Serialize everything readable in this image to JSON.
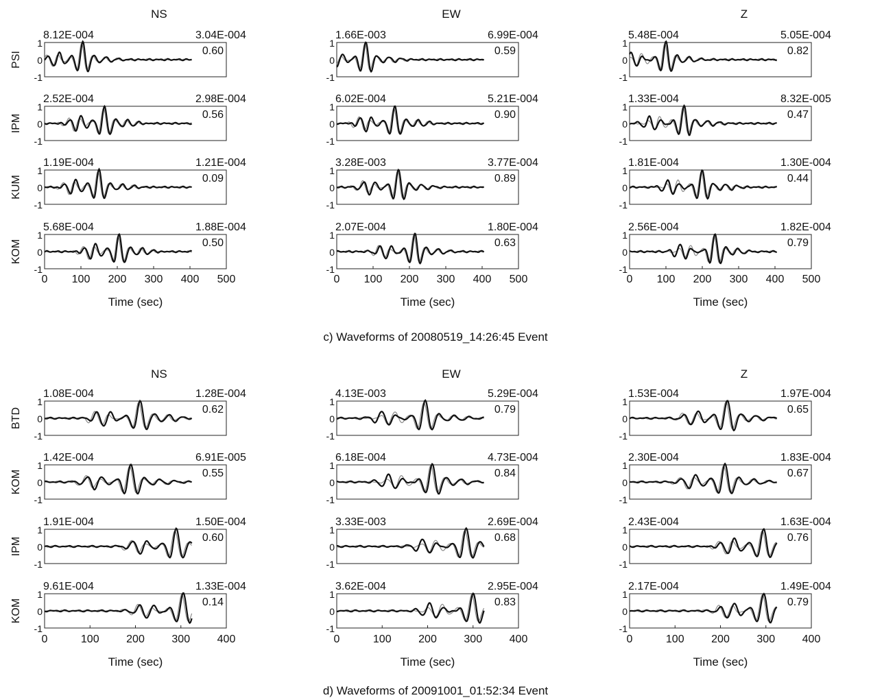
{
  "figure": {
    "panels": [
      {
        "caption": "c) Waveforms of 20080519_14:26:45 Event",
        "components": [
          "NS",
          "EW",
          "Z"
        ],
        "stations": [
          "PSI",
          "IPM",
          "KUM",
          "KOM"
        ],
        "xlabel": "Time (sec)",
        "xlim": [
          0,
          500
        ],
        "xticks": [
          "0",
          "100",
          "200",
          "300",
          "400",
          "500"
        ],
        "ylim": [
          -1,
          1
        ],
        "yticks": [
          "1",
          "0",
          "-1"
        ]
      },
      {
        "caption": "d) Waveforms of 20091001_01:52:34 Event",
        "components": [
          "NS",
          "EW",
          "Z"
        ],
        "stations": [
          "BTD",
          "KOM",
          "IPM",
          "KOM"
        ],
        "xlabel": "Time (sec)",
        "xlim": [
          0,
          400
        ],
        "xticks": [
          "0",
          "100",
          "200",
          "300",
          "400"
        ],
        "ylim": [
          -1,
          1
        ],
        "yticks": [
          "1",
          "0",
          "-1"
        ]
      }
    ]
  },
  "chart_data": [
    {
      "type": "line",
      "title": "c) Waveforms of 20080519_14:26:45 Event",
      "xlabel": "Time (sec)",
      "xlim": [
        0,
        500
      ],
      "ylim": [
        -1,
        1
      ],
      "trace_duration_sec": 405,
      "series": [
        "observed",
        "synthetic"
      ],
      "subplots": [
        {
          "station": "PSI",
          "component": "NS",
          "max_observed": "8.12E-004",
          "max_synthetic": "3.04E-004",
          "variance_reduction": "0.60",
          "peak_time_sec": 105
        },
        {
          "station": "PSI",
          "component": "EW",
          "max_observed": "1.66E-003",
          "max_synthetic": "6.99E-004",
          "variance_reduction": "0.59",
          "peak_time_sec": 80
        },
        {
          "station": "PSI",
          "component": "Z",
          "max_observed": "5.48E-004",
          "max_synthetic": "5.05E-004",
          "variance_reduction": "0.82",
          "peak_time_sec": 100
        },
        {
          "station": "IPM",
          "component": "NS",
          "max_observed": "2.52E-004",
          "max_synthetic": "2.98E-004",
          "variance_reduction": "0.56",
          "peak_time_sec": 165
        },
        {
          "station": "IPM",
          "component": "EW",
          "max_observed": "6.02E-004",
          "max_synthetic": "5.21E-004",
          "variance_reduction": "0.90",
          "peak_time_sec": 160
        },
        {
          "station": "IPM",
          "component": "Z",
          "max_observed": "1.33E-004",
          "max_synthetic": "8.32E-005",
          "variance_reduction": "0.47",
          "peak_time_sec": 150
        },
        {
          "station": "KUM",
          "component": "NS",
          "max_observed": "1.19E-004",
          "max_synthetic": "1.21E-004",
          "variance_reduction": "0.09",
          "peak_time_sec": 150
        },
        {
          "station": "KUM",
          "component": "EW",
          "max_observed": "3.28E-003",
          "max_synthetic": "3.77E-004",
          "variance_reduction": "0.89",
          "peak_time_sec": 170
        },
        {
          "station": "KUM",
          "component": "Z",
          "max_observed": "1.81E-004",
          "max_synthetic": "1.30E-004",
          "variance_reduction": "0.44",
          "peak_time_sec": 200
        },
        {
          "station": "KOM",
          "component": "NS",
          "max_observed": "5.68E-004",
          "max_synthetic": "1.88E-004",
          "variance_reduction": "0.50",
          "peak_time_sec": 205
        },
        {
          "station": "KOM",
          "component": "EW",
          "max_observed": "2.07E-004",
          "max_synthetic": "1.80E-004",
          "variance_reduction": "0.63",
          "peak_time_sec": 215
        },
        {
          "station": "KOM",
          "component": "Z",
          "max_observed": "2.56E-004",
          "max_synthetic": "1.82E-004",
          "variance_reduction": "0.79",
          "peak_time_sec": 235
        }
      ]
    },
    {
      "type": "line",
      "title": "d) Waveforms of 20091001_01:52:34 Event",
      "xlabel": "Time (sec)",
      "xlim": [
        0,
        400
      ],
      "ylim": [
        -1,
        1
      ],
      "trace_duration_sec": 325,
      "series": [
        "observed",
        "synthetic"
      ],
      "subplots": [
        {
          "station": "BTD",
          "component": "NS",
          "max_observed": "1.08E-004",
          "max_synthetic": "1.28E-004",
          "variance_reduction": "0.62",
          "peak_time_sec": 210
        },
        {
          "station": "BTD",
          "component": "EW",
          "max_observed": "4.13E-003",
          "max_synthetic": "5.29E-004",
          "variance_reduction": "0.79",
          "peak_time_sec": 195
        },
        {
          "station": "BTD",
          "component": "Z",
          "max_observed": "1.53E-004",
          "max_synthetic": "1.97E-004",
          "variance_reduction": "0.65",
          "peak_time_sec": 215
        },
        {
          "station": "KOM",
          "component": "NS",
          "max_observed": "1.42E-004",
          "max_synthetic": "6.91E-005",
          "variance_reduction": "0.55",
          "peak_time_sec": 190
        },
        {
          "station": "KOM",
          "component": "EW",
          "max_observed": "6.18E-004",
          "max_synthetic": "4.73E-004",
          "variance_reduction": "0.84",
          "peak_time_sec": 210
        },
        {
          "station": "KOM",
          "component": "Z",
          "max_observed": "2.30E-004",
          "max_synthetic": "1.83E-004",
          "variance_reduction": "0.67",
          "peak_time_sec": 210
        },
        {
          "station": "IPM",
          "component": "NS",
          "max_observed": "1.91E-004",
          "max_synthetic": "1.50E-004",
          "variance_reduction": "0.60",
          "peak_time_sec": 290
        },
        {
          "station": "IPM",
          "component": "EW",
          "max_observed": "3.33E-003",
          "max_synthetic": "2.69E-004",
          "variance_reduction": "0.68",
          "peak_time_sec": 285
        },
        {
          "station": "IPM",
          "component": "Z",
          "max_observed": "2.43E-004",
          "max_synthetic": "1.63E-004",
          "variance_reduction": "0.76",
          "peak_time_sec": 295
        },
        {
          "station": "KOM",
          "component": "NS",
          "max_observed": "9.61E-004",
          "max_synthetic": "1.33E-004",
          "variance_reduction": "0.14",
          "peak_time_sec": 305
        },
        {
          "station": "KOM",
          "component": "EW",
          "max_observed": "3.62E-004",
          "max_synthetic": "2.95E-004",
          "variance_reduction": "0.83",
          "peak_time_sec": 300
        },
        {
          "station": "KOM",
          "component": "Z",
          "max_observed": "2.17E-004",
          "max_synthetic": "1.49E-004",
          "variance_reduction": "0.79",
          "peak_time_sec": 295
        }
      ]
    }
  ]
}
